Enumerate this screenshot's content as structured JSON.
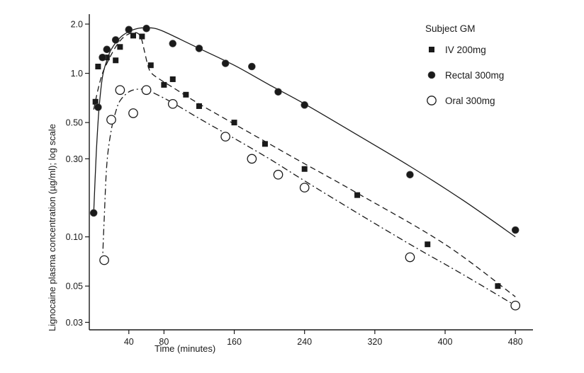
{
  "chart_data": {
    "type": "scatter",
    "title": "",
    "xlabel": "Time (minutes)",
    "ylabel": "Lignocaine plasma concentration (µg/ml); log scale",
    "xlim": [
      -5,
      500
    ],
    "ylim": [
      0.027,
      2.3
    ],
    "y_scale": "log",
    "x_ticks": [
      40,
      80,
      160,
      240,
      320,
      400,
      480
    ],
    "x_tick_labels": [
      "40",
      "80",
      "160",
      "240",
      "320",
      "400",
      "480"
    ],
    "y_ticks": [
      0.03,
      0.05,
      0.1,
      0.3,
      0.5,
      1.0,
      2.0
    ],
    "y_tick_labels": [
      "0.03",
      "0.05",
      "0.10",
      "0.30",
      "0.50",
      "1.0",
      "2.0"
    ],
    "grid": false,
    "legend_title": "Subject GM",
    "legend_position": "top-right",
    "series": [
      {
        "name": "IV 200mg",
        "marker": "filled-square",
        "line_style": "dashed",
        "color": "#1a1a1a",
        "points": [
          [
            2,
            0.67
          ],
          [
            5,
            1.1
          ],
          [
            10,
            1.25
          ],
          [
            15,
            1.25
          ],
          [
            25,
            1.2
          ],
          [
            30,
            1.45
          ],
          [
            45,
            1.7
          ],
          [
            55,
            1.68
          ],
          [
            65,
            1.12
          ],
          [
            80,
            0.85
          ],
          [
            90,
            0.92
          ],
          [
            105,
            0.74
          ],
          [
            120,
            0.63
          ],
          [
            160,
            0.5
          ],
          [
            195,
            0.37
          ],
          [
            240,
            0.26
          ],
          [
            300,
            0.18
          ],
          [
            380,
            0.09
          ],
          [
            460,
            0.05
          ]
        ],
        "fit_curve": [
          [
            0,
            0.6
          ],
          [
            5,
            0.8
          ],
          [
            10,
            1.0
          ],
          [
            15,
            1.15
          ],
          [
            20,
            1.3
          ],
          [
            25,
            1.45
          ],
          [
            30,
            1.58
          ],
          [
            35,
            1.68
          ],
          [
            40,
            1.74
          ],
          [
            45,
            1.77
          ],
          [
            50,
            1.76
          ],
          [
            54,
            1.65
          ],
          [
            58,
            1.35
          ],
          [
            62,
            1.1
          ],
          [
            66,
            1.0
          ],
          [
            75,
            0.92
          ],
          [
            90,
            0.82
          ],
          [
            120,
            0.65
          ],
          [
            160,
            0.49
          ],
          [
            200,
            0.37
          ],
          [
            240,
            0.28
          ],
          [
            300,
            0.185
          ],
          [
            400,
            0.09
          ],
          [
            480,
            0.043
          ]
        ]
      },
      {
        "name": "Rectal 300mg",
        "marker": "filled-circle",
        "line_style": "solid",
        "color": "#1a1a1a",
        "points": [
          [
            0,
            0.14
          ],
          [
            5,
            0.62
          ],
          [
            10,
            1.25
          ],
          [
            15,
            1.4
          ],
          [
            25,
            1.6
          ],
          [
            40,
            1.85
          ],
          [
            60,
            1.88
          ],
          [
            90,
            1.52
          ],
          [
            120,
            1.42
          ],
          [
            150,
            1.15
          ],
          [
            180,
            1.1
          ],
          [
            210,
            0.77
          ],
          [
            240,
            0.64
          ],
          [
            360,
            0.24
          ],
          [
            480,
            0.11
          ]
        ],
        "fit_curve": [
          [
            0,
            0.14
          ],
          [
            3,
            0.33
          ],
          [
            6,
            0.6
          ],
          [
            10,
            0.95
          ],
          [
            15,
            1.2
          ],
          [
            20,
            1.4
          ],
          [
            30,
            1.65
          ],
          [
            40,
            1.8
          ],
          [
            50,
            1.88
          ],
          [
            60,
            1.9
          ],
          [
            70,
            1.88
          ],
          [
            80,
            1.8
          ],
          [
            100,
            1.6
          ],
          [
            120,
            1.42
          ],
          [
            160,
            1.12
          ],
          [
            200,
            0.85
          ],
          [
            240,
            0.65
          ],
          [
            300,
            0.42
          ],
          [
            360,
            0.27
          ],
          [
            420,
            0.168
          ],
          [
            480,
            0.1
          ]
        ]
      },
      {
        "name": "Oral 300mg",
        "marker": "open-circle",
        "line_style": "dash-dot",
        "color": "#1a1a1a",
        "points": [
          [
            12,
            0.072
          ],
          [
            20,
            0.52
          ],
          [
            30,
            0.79
          ],
          [
            45,
            0.57
          ],
          [
            60,
            0.79
          ],
          [
            90,
            0.65
          ],
          [
            150,
            0.41
          ],
          [
            180,
            0.3
          ],
          [
            210,
            0.24
          ],
          [
            240,
            0.2
          ],
          [
            360,
            0.075
          ],
          [
            480,
            0.038
          ]
        ],
        "fit_curve": [
          [
            10,
            0.07
          ],
          [
            12,
            0.13
          ],
          [
            15,
            0.28
          ],
          [
            20,
            0.45
          ],
          [
            25,
            0.58
          ],
          [
            30,
            0.68
          ],
          [
            40,
            0.77
          ],
          [
            50,
            0.8
          ],
          [
            60,
            0.79
          ],
          [
            70,
            0.75
          ],
          [
            90,
            0.66
          ],
          [
            120,
            0.53
          ],
          [
            160,
            0.4
          ],
          [
            200,
            0.3
          ],
          [
            240,
            0.22
          ],
          [
            300,
            0.14
          ],
          [
            360,
            0.09
          ],
          [
            420,
            0.059
          ],
          [
            480,
            0.038
          ]
        ]
      }
    ]
  }
}
